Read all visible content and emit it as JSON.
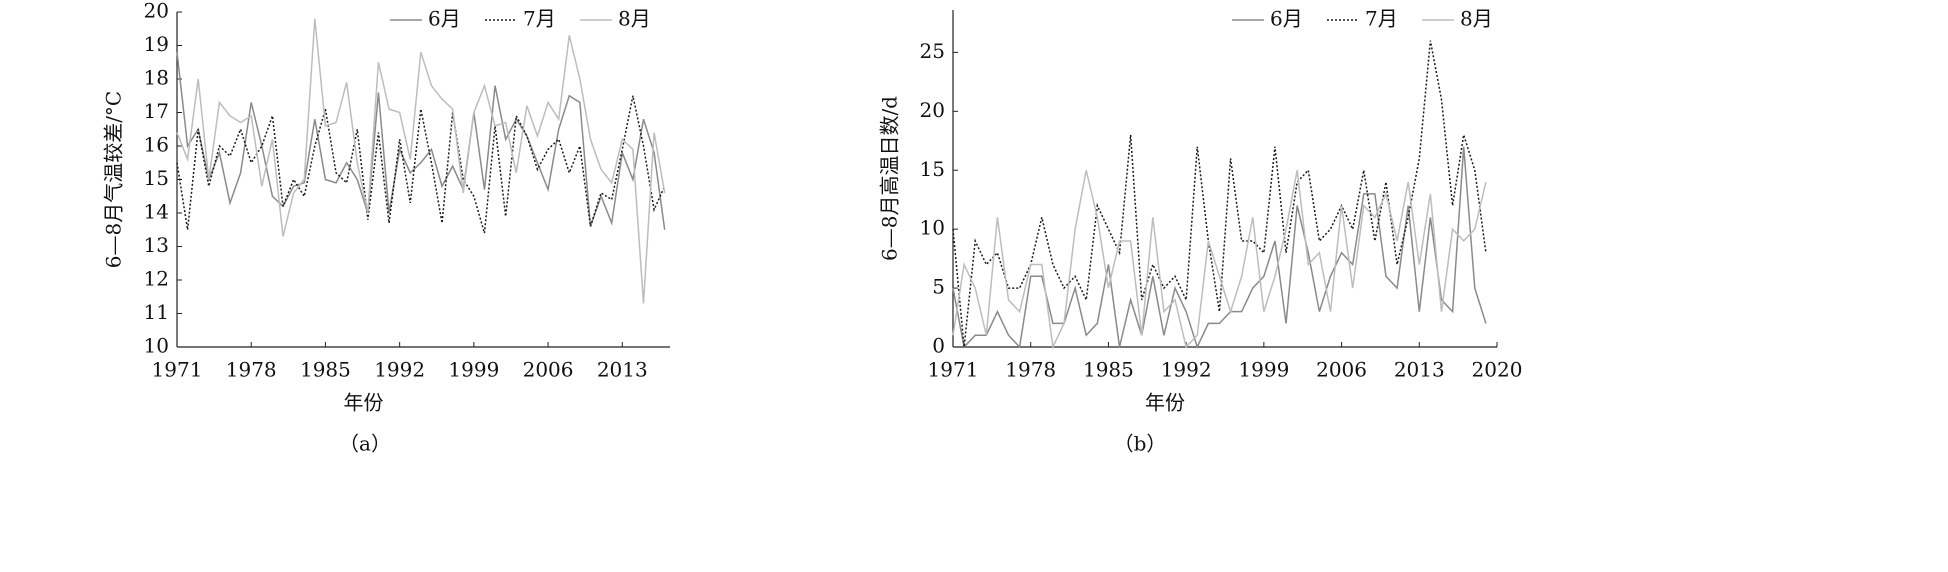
{
  "chart_data": [
    {
      "type": "line",
      "ylabel": "6—8月气温较差/°C",
      "xlabel": "年份",
      "caption": "（a）",
      "x": [
        1971,
        1972,
        1973,
        1974,
        1975,
        1976,
        1977,
        1978,
        1979,
        1980,
        1981,
        1982,
        1983,
        1984,
        1985,
        1986,
        1987,
        1988,
        1989,
        1990,
        1991,
        1992,
        1993,
        1994,
        1995,
        1996,
        1997,
        1998,
        1999,
        2000,
        2001,
        2002,
        2003,
        2004,
        2005,
        2006,
        2007,
        2008,
        2009,
        2010,
        2011,
        2012,
        2013,
        2014,
        2015,
        2016,
        2017
      ],
      "series": [
        {
          "name": "6月",
          "color": "#8a8a8a",
          "values": [
            18.8,
            16.0,
            16.5,
            15.0,
            15.8,
            14.3,
            15.2,
            17.3,
            16.0,
            14.5,
            14.2,
            14.8,
            14.9,
            16.8,
            15.0,
            14.9,
            15.5,
            15.0,
            14.0,
            17.6,
            14.0,
            15.9,
            15.2,
            15.5,
            15.9,
            14.8,
            15.4,
            14.7,
            17.0,
            14.7,
            17.8,
            16.2,
            16.8,
            16.3,
            15.5,
            14.7,
            16.5,
            17.5,
            17.3,
            13.6,
            14.5,
            13.7,
            15.8,
            15.0,
            16.8,
            15.8,
            13.5
          ]
        },
        {
          "name": "7月",
          "color": "#1a1a1a",
          "values": [
            15.5,
            13.5,
            16.5,
            14.8,
            16.0,
            15.7,
            16.5,
            15.5,
            16.0,
            16.9,
            14.2,
            15.0,
            14.5,
            16.0,
            17.1,
            15.2,
            14.9,
            16.5,
            13.8,
            16.4,
            13.7,
            16.2,
            14.3,
            17.1,
            15.5,
            13.7,
            17.0,
            15.0,
            14.5,
            13.4,
            16.6,
            13.9,
            16.9,
            16.3,
            15.3,
            15.9,
            16.2,
            15.2,
            16.0,
            13.6,
            14.6,
            14.4,
            15.9,
            17.5,
            16.0,
            14.1,
            14.8
          ]
        },
        {
          "name": "8月",
          "color": "#bdbdbd",
          "values": [
            16.4,
            15.6,
            18.0,
            15.0,
            17.3,
            16.9,
            16.7,
            16.9,
            14.8,
            16.2,
            13.3,
            14.6,
            15.0,
            19.8,
            16.6,
            16.7,
            17.9,
            15.5,
            14.0,
            18.5,
            17.1,
            17.0,
            15.6,
            18.8,
            17.8,
            17.4,
            17.1,
            14.6,
            17.0,
            17.8,
            16.6,
            16.7,
            15.2,
            17.2,
            16.3,
            17.3,
            16.8,
            19.3,
            18.0,
            16.2,
            15.3,
            14.9,
            16.2,
            15.9,
            11.3,
            16.4,
            14.6
          ]
        }
      ],
      "xlim": [
        1971,
        2017.5
      ],
      "xticks": [
        1971,
        1978,
        1985,
        1992,
        1999,
        2006,
        2013
      ],
      "ylim": [
        10,
        20
      ],
      "yticks": [
        10,
        11,
        12,
        13,
        14,
        15,
        16,
        17,
        18,
        19,
        20
      ]
    },
    {
      "type": "line",
      "ylabel": "6—8月高温日数/d",
      "xlabel": "年份",
      "caption": "（b）",
      "x": [
        1971,
        1972,
        1973,
        1974,
        1975,
        1976,
        1977,
        1978,
        1979,
        1980,
        1981,
        1982,
        1983,
        1984,
        1985,
        1986,
        1987,
        1988,
        1989,
        1990,
        1991,
        1992,
        1993,
        1994,
        1995,
        1996,
        1997,
        1998,
        1999,
        2000,
        2001,
        2002,
        2003,
        2004,
        2005,
        2006,
        2007,
        2008,
        2009,
        2010,
        2011,
        2012,
        2013,
        2014,
        2015,
        2016,
        2017,
        2018,
        2019
      ],
      "series": [
        {
          "name": "6月",
          "color": "#8a8a8a",
          "values": [
            5,
            0,
            1,
            1,
            3,
            1,
            0,
            6,
            6,
            2,
            2,
            5,
            1,
            2,
            7,
            0,
            4,
            1,
            6,
            1,
            5,
            3,
            0,
            2,
            2,
            3,
            3,
            5,
            6,
            9,
            2,
            12,
            8,
            3,
            6,
            8,
            7,
            13,
            13,
            6,
            5,
            12,
            3,
            11,
            4,
            3,
            17,
            5,
            2
          ]
        },
        {
          "name": "7月",
          "color": "#1a1a1a",
          "values": [
            10,
            0,
            9,
            7,
            8,
            5,
            5,
            7,
            11,
            7,
            5,
            6,
            4,
            12,
            10,
            8,
            18,
            4,
            7,
            5,
            6,
            4,
            17,
            9,
            3,
            16,
            9,
            9,
            8,
            17,
            8,
            14,
            15,
            9,
            10,
            12,
            10,
            15,
            9,
            14,
            7,
            11,
            16,
            26,
            21,
            12,
            18,
            15,
            8
          ]
        },
        {
          "name": "8月",
          "color": "#bdbdbd",
          "values": [
            1,
            7,
            5,
            1,
            11,
            4,
            3,
            7,
            7,
            0,
            2,
            10,
            15,
            11,
            5,
            9,
            9,
            1,
            11,
            3,
            4,
            0,
            1,
            9,
            6,
            3,
            6,
            11,
            3,
            6,
            10,
            15,
            7,
            8,
            3,
            12,
            5,
            12,
            11,
            13,
            9,
            14,
            7,
            13,
            3,
            10,
            9,
            10,
            14
          ]
        }
      ],
      "xlim": [
        1971,
        2020
      ],
      "xticks": [
        1971,
        1978,
        1985,
        1992,
        1999,
        2006,
        2013,
        2020
      ],
      "ylim": [
        0,
        28.6
      ],
      "yticks": [
        0,
        5,
        10,
        15,
        20,
        25
      ]
    }
  ]
}
